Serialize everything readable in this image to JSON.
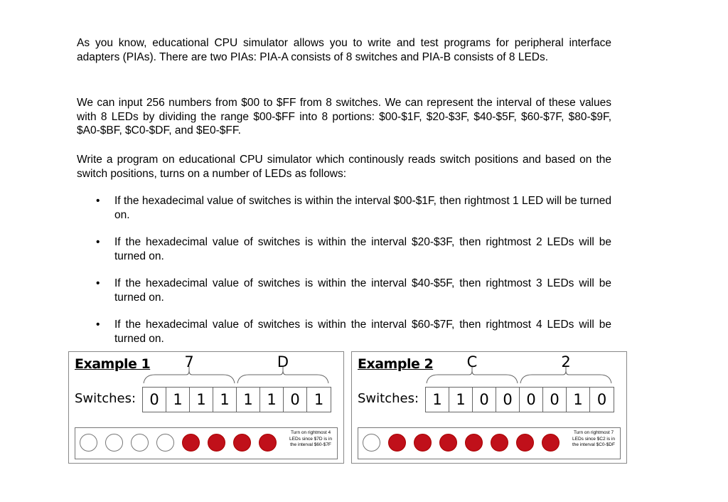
{
  "paragraphs": [
    "As you know, educational CPU simulator allows you to write and test programs for peripheral interface adapters (PIAs). There are two PIAs: PIA-A consists of 8 switches and PIA-B consists of 8 LEDs.",
    "We can input 256 numbers from $00 to $FF from 8 switches. We can represent the interval of these values with 8 LEDs by dividing the range $00-$FF into 8 portions: $00-$1F, $20-$3F, $40-$5F, $60-$7F, $80-$9F, $A0-$BF, $C0-$DF, and $E0-$FF.",
    "Write a program on educational CPU simulator which continously reads switch positions and based on the switch positions, turns on a number of LEDs as follows:"
  ],
  "bullet_symbol": "•",
  "bullets": [
    "If the hexadecimal value of switches is within the interval $00-$1F, then rightmost 1 LED will be turned on.",
    "If the hexadecimal value of switches is within the interval $20-$3F, then rightmost 2 LEDs will be turned on.",
    "If the hexadecimal value of switches is within the interval $40-$5F, then rightmost 3 LEDs will be turned on.",
    "If the hexadecimal value of switches is within the interval $60-$7F, then rightmost 4 LEDs will be turned on."
  ],
  "examples": [
    {
      "title": "Example 1",
      "hex_high": "7",
      "hex_low": "D",
      "switches_label": "Switches:",
      "bits": [
        "0",
        "1",
        "1",
        "1",
        "1",
        "1",
        "0",
        "1"
      ],
      "leds_on": 4,
      "note": "Turn on rightmost 4 LEDs since $7D is in the interval $60-$7F"
    },
    {
      "title": "Example 2",
      "hex_high": "C",
      "hex_low": "2",
      "switches_label": "Switches:",
      "bits": [
        "1",
        "1",
        "0",
        "0",
        "0",
        "0",
        "1",
        "0"
      ],
      "leds_on": 7,
      "note": "Turn on rightmost 7 LEDs since $C2 is in the interval $C0-$DF"
    }
  ],
  "colors": {
    "led_on": "#c0101a",
    "led_off": "#ffffff"
  }
}
